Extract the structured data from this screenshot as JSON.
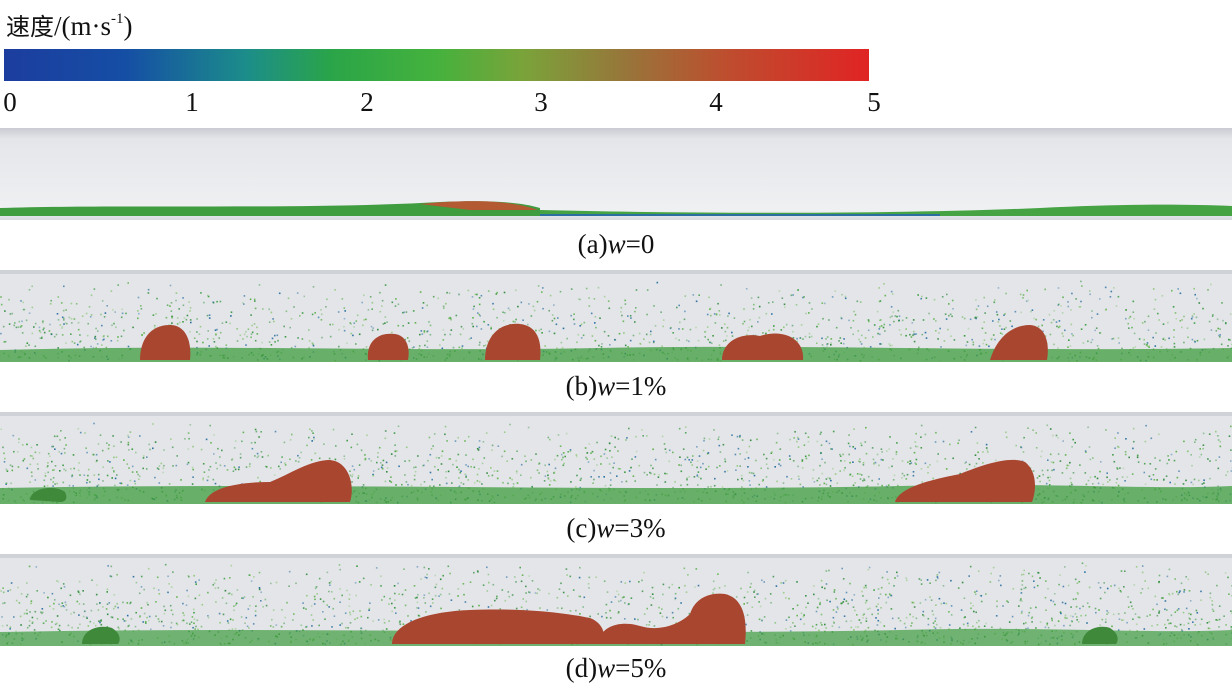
{
  "colorbar": {
    "title_cn": "速度",
    "title_unit_prefix": "/(m·s",
    "title_unit_sup": "-1",
    "title_unit_suffix": ")",
    "ticks": [
      "0",
      "1",
      "2",
      "3",
      "4",
      "5"
    ],
    "min": 0,
    "max": 5,
    "colors": {
      "low": "#1c3d9e",
      "mid": "#45b23d",
      "high": "#e02424"
    }
  },
  "panels": [
    {
      "id": "a",
      "label_prefix": "(a)",
      "var": "w",
      "label_value": "=0"
    },
    {
      "id": "b",
      "label_prefix": "(b)",
      "var": "w",
      "label_value": "=1%"
    },
    {
      "id": "c",
      "label_prefix": "(c)",
      "var": "w",
      "label_value": "=3%"
    },
    {
      "id": "d",
      "label_prefix": "(d)",
      "var": "w",
      "label_value": "=5%"
    }
  ],
  "colors": {
    "pipe_bg": "#dfe2e7",
    "particle_green": "#3a9a3e",
    "slug_brown": "#b5492f",
    "particle_blue": "#2a6fa0"
  }
}
